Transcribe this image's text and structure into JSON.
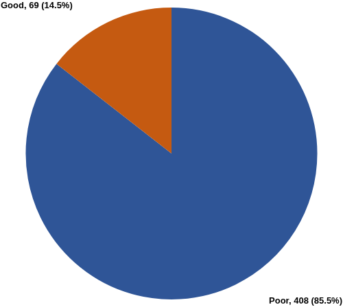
{
  "chart_data": {
    "type": "pie",
    "categories": [
      "Poor",
      "Good"
    ],
    "values": [
      408,
      69
    ],
    "value_labels": [
      "Poor, 408 (85.5%)",
      "Good, 69 (14.5%)"
    ],
    "colors": [
      "#2f5597",
      "#c55a11"
    ],
    "data_labels": true
  }
}
